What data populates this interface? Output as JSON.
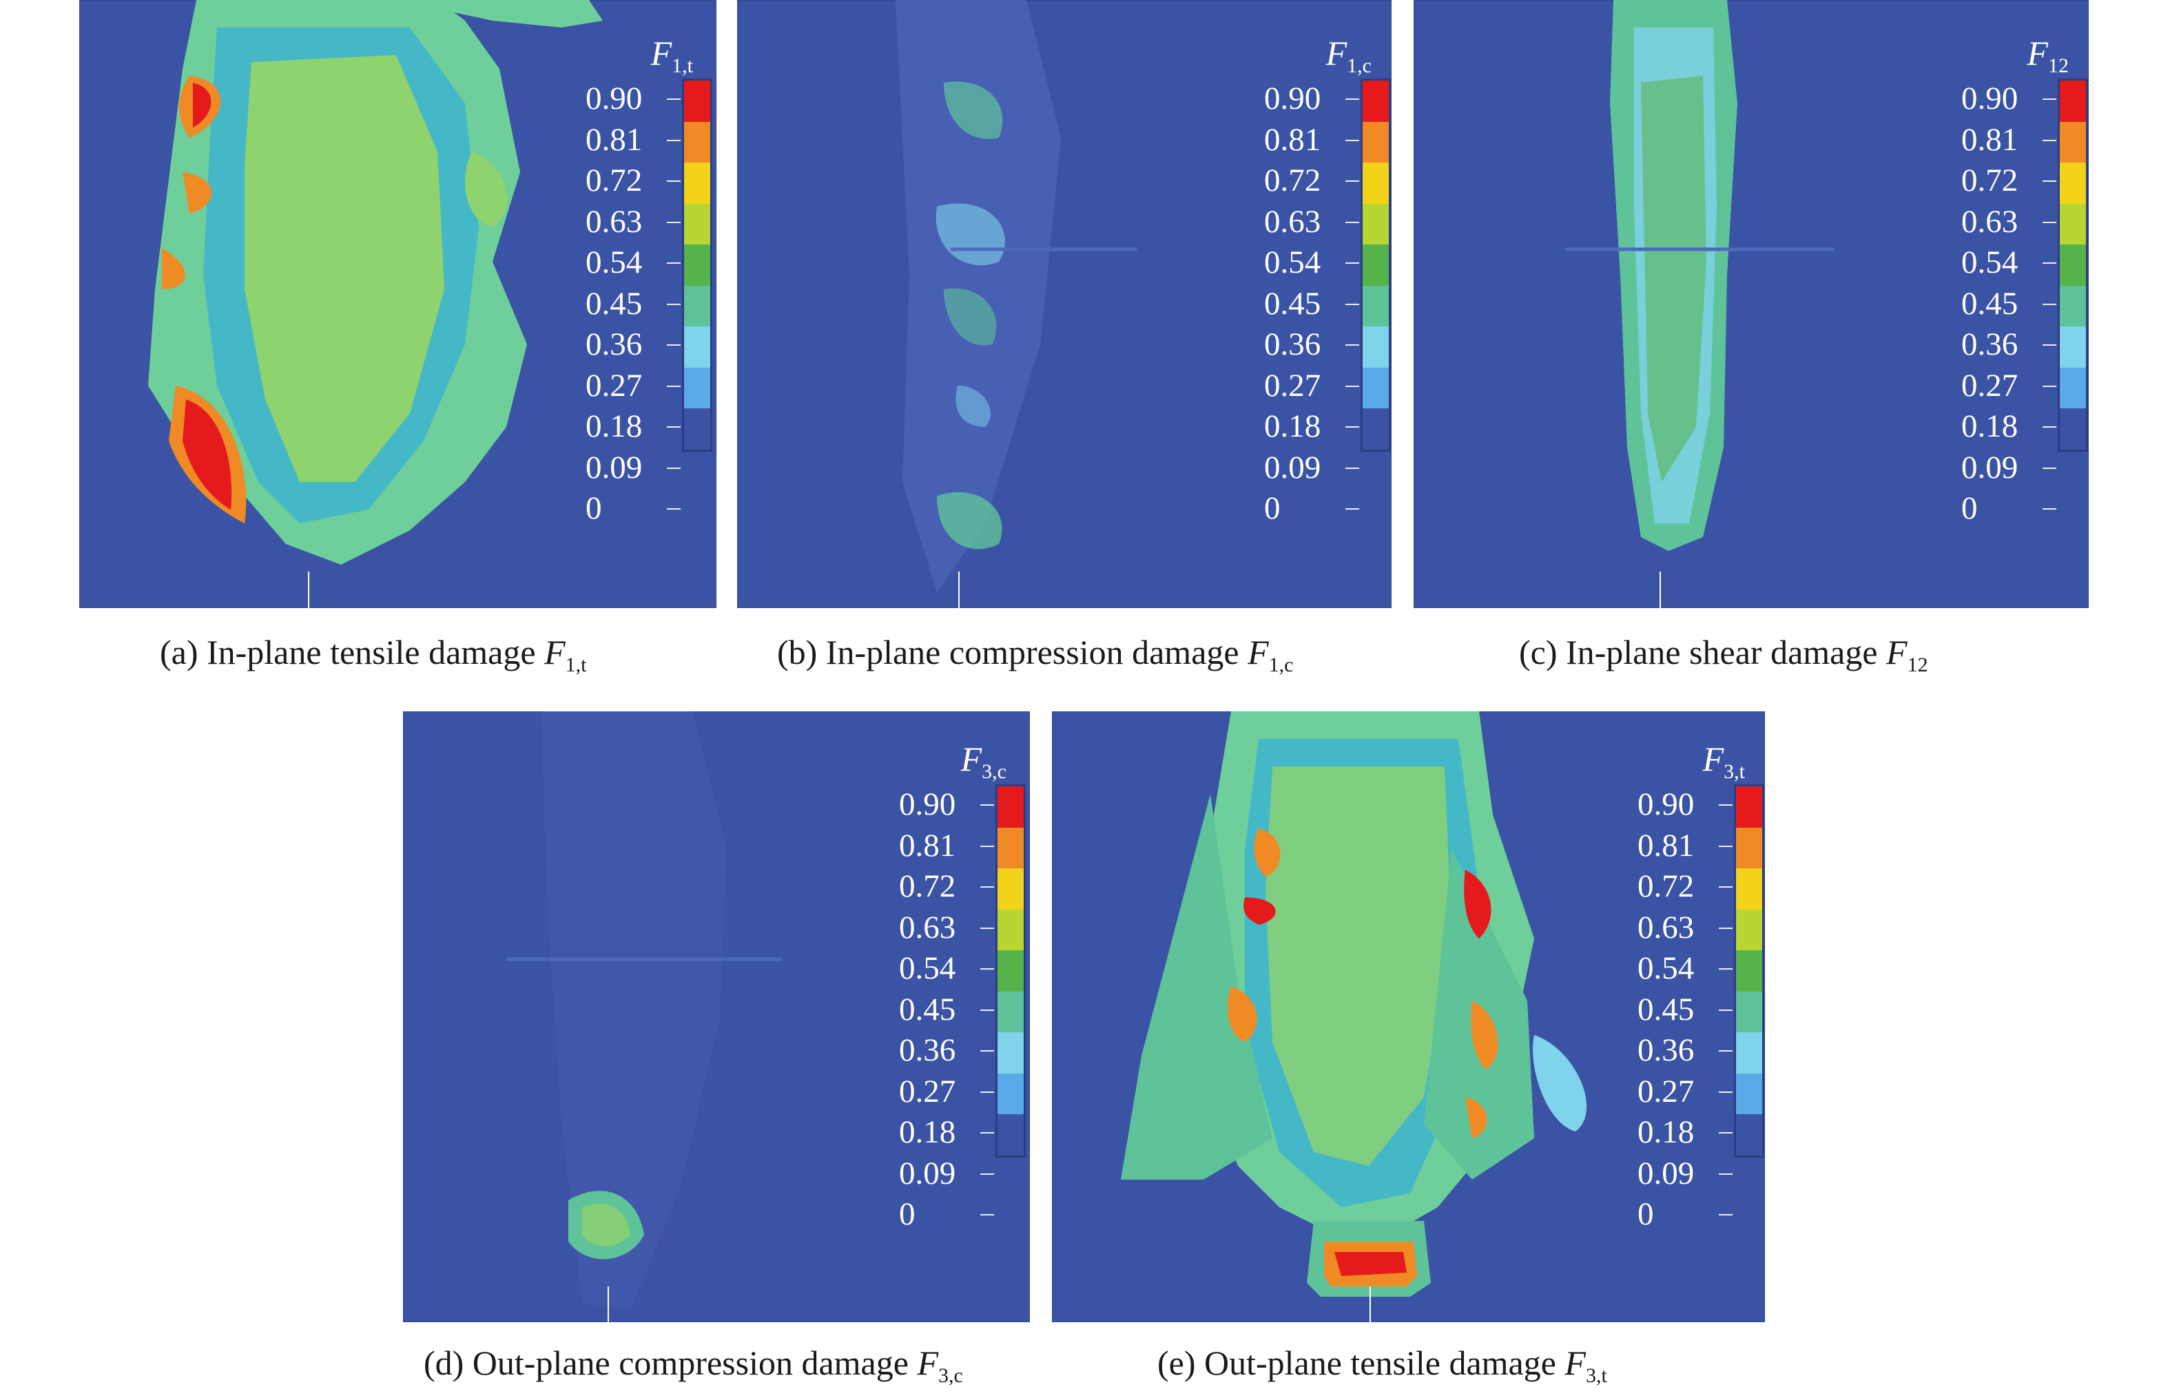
{
  "colorbar": {
    "colors": [
      "#e41a1c",
      "#f08a24",
      "#f3d21a",
      "#b7d632",
      "#56b34a",
      "#5fc39a",
      "#7fd3ea",
      "#5aa9e8"
    ],
    "ticks": [
      "0.90",
      "0.81",
      "0.72",
      "0.63",
      "0.54",
      "0.45",
      "0.36",
      "0.27",
      "0.18",
      "0.09",
      "0"
    ]
  },
  "panels": [
    {
      "id": "a",
      "legend_symbol": "F",
      "legend_sub": "1,t",
      "caption_text": "(a) In-plane tensile damage ",
      "caption_symbol": "F",
      "caption_sub": "1,t"
    },
    {
      "id": "b",
      "legend_symbol": "F",
      "legend_sub": "1,c",
      "caption_text": "(b) In-plane compression damage ",
      "caption_symbol": "F",
      "caption_sub": "1,c"
    },
    {
      "id": "c",
      "legend_symbol": "F",
      "legend_sub": "12",
      "caption_text": "(c) In-plane shear damage ",
      "caption_symbol": "F",
      "caption_sub": "12"
    },
    {
      "id": "d",
      "legend_symbol": "F",
      "legend_sub": "3,c",
      "caption_text": "(d) Out-plane compression damage ",
      "caption_symbol": "F",
      "caption_sub": "3,c"
    },
    {
      "id": "e",
      "legend_symbol": "F",
      "legend_sub": "3,t",
      "caption_text": "(e) Out-plane tensile damage ",
      "caption_symbol": "F",
      "caption_sub": "3,t"
    }
  ]
}
